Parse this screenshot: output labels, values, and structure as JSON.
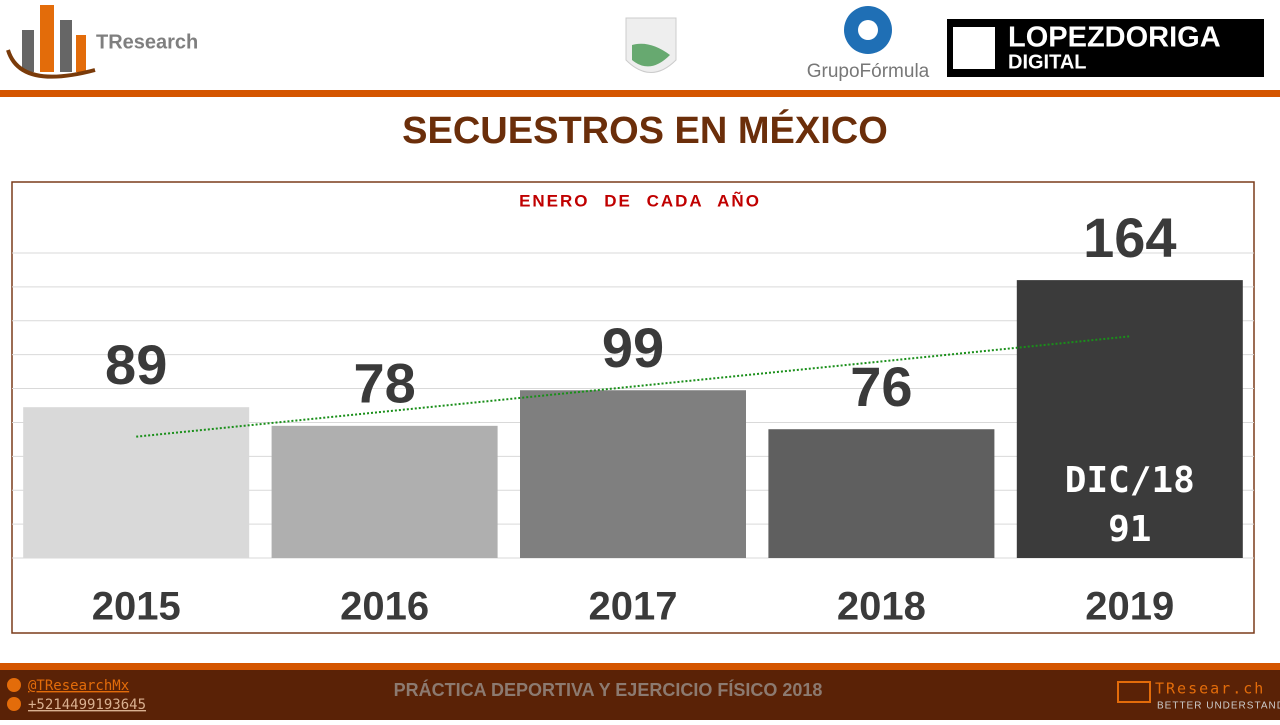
{
  "header": {
    "brand": "TResearch",
    "partner1": "GrupoFórmula",
    "partner2_line1": "LOPEZDORIGA",
    "partner2_line2": "DIGITAL"
  },
  "chart_data": {
    "type": "bar",
    "title": "SECUESTROS EN MÉXICO",
    "subtitle": "ENERO DE CADA AÑO",
    "categories": [
      "2015",
      "2016",
      "2017",
      "2018",
      "2019"
    ],
    "values": [
      89,
      78,
      99,
      76,
      164
    ],
    "colors": [
      "#d9d9d9",
      "#afafaf",
      "#7f7f7f",
      "#5f5f5f",
      "#3b3b3b"
    ],
    "ylim": [
      0,
      180
    ],
    "yticks": [
      0,
      20,
      40,
      60,
      80,
      100,
      120,
      140,
      160,
      180
    ],
    "grid": true,
    "ytick_labels": false,
    "trendline": true,
    "trendline_color": "#1a8f1a",
    "annotation": {
      "label": "DIC/18",
      "value": 91
    }
  },
  "footer": {
    "twitter": "@TResearchMx",
    "phone": "+5214499193645",
    "title": "PRÁCTICA DEPORTIVA Y EJERCICIO FÍSICO 2018",
    "site": "TResear.ch",
    "tagline": "BETTER UNDERSTAND"
  }
}
